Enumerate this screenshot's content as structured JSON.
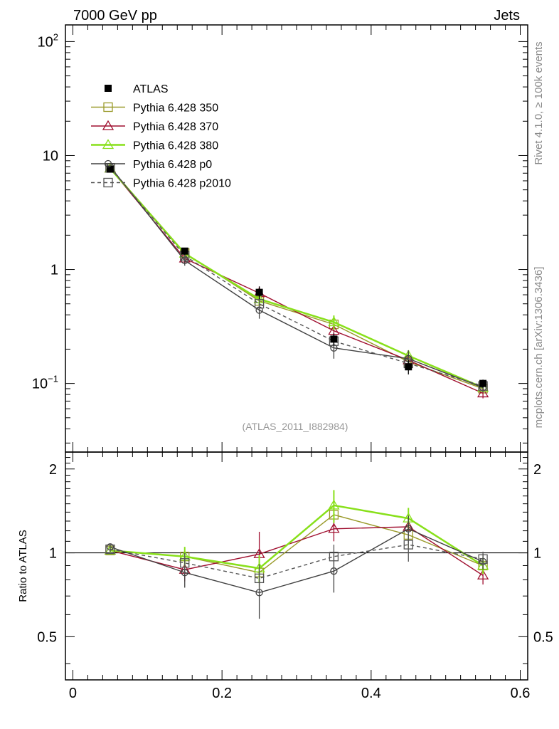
{
  "header": {
    "energy_label": "7000 GeV pp",
    "category_label": "Jets"
  },
  "side_labels": {
    "rivet": "Rivet 4.1.0, ≥ 100k events",
    "mcplots": "mcplots.cern.ch [arXiv:1306.3436]"
  },
  "analysis_id": "(ATLAS_2011_I882984)",
  "chart_data": [
    {
      "type": "line",
      "panel": "main",
      "yscale": "log",
      "ylim": [
        0.025,
        140
      ],
      "xlim": [
        -0.01,
        0.61
      ],
      "ytick_labels": {
        "e2": "10^2",
        "ten": "10",
        "one": "1",
        "tenth": "10^-1"
      },
      "x": [
        0.05,
        0.15,
        0.25,
        0.35,
        0.45,
        0.55
      ],
      "series": [
        {
          "name": "ATLAS",
          "color": "#000000",
          "marker": "filled-square",
          "style": "points",
          "values": [
            7.6,
            1.45,
            0.63,
            0.245,
            0.14,
            0.1
          ],
          "errors": [
            0.3,
            0.1,
            0.08,
            0.03,
            0.02,
            0.008
          ]
        },
        {
          "name": "Pythia 6.428 350",
          "color": "#9a9a2a",
          "marker": "open-square",
          "style": "solid",
          "values": [
            7.8,
            1.4,
            0.53,
            0.33,
            0.155,
            0.09
          ],
          "errors": [
            0.2,
            0.12,
            0.06,
            0.04,
            0.02,
            0.008
          ]
        },
        {
          "name": "Pythia 6.428 370",
          "color": "#a01030",
          "marker": "open-triangle",
          "style": "solid",
          "values": [
            7.7,
            1.25,
            0.62,
            0.29,
            0.16,
            0.082
          ],
          "errors": [
            0.2,
            0.12,
            0.09,
            0.04,
            0.02,
            0.008
          ]
        },
        {
          "name": "Pythia 6.428 380",
          "color": "#88e01a",
          "marker": "open-triangle",
          "style": "solid",
          "values": [
            7.7,
            1.38,
            0.55,
            0.345,
            0.175,
            0.092
          ],
          "errors": [
            0.2,
            0.12,
            0.06,
            0.05,
            0.02,
            0.008
          ]
        },
        {
          "name": "Pythia 6.428 p0",
          "color": "#404040",
          "marker": "open-circle",
          "style": "solid",
          "values": [
            8.0,
            1.2,
            0.44,
            0.205,
            0.165,
            0.092
          ],
          "errors": [
            0.2,
            0.12,
            0.07,
            0.04,
            0.03,
            0.008
          ]
        },
        {
          "name": "Pythia 6.428 p2010",
          "color": "#555555",
          "marker": "open-square",
          "style": "dashed",
          "values": [
            7.8,
            1.32,
            0.5,
            0.235,
            0.15,
            0.095
          ],
          "errors": [
            0.2,
            0.12,
            0.06,
            0.03,
            0.02,
            0.008
          ]
        }
      ]
    },
    {
      "type": "line",
      "panel": "ratio",
      "ylabel": "Ratio to ATLAS",
      "ylim": [
        0.35,
        2.3
      ],
      "yticks": [
        0.5,
        1,
        2
      ],
      "ytick_labels": [
        "0.5",
        "1",
        "2"
      ],
      "xlim": [
        -0.01,
        0.61
      ],
      "xticks": [
        0,
        0.2,
        0.4,
        0.6
      ],
      "xtick_labels": [
        "0",
        "0.2",
        "0.4",
        "0.6"
      ],
      "reference_line": 1,
      "x": [
        0.05,
        0.15,
        0.25,
        0.35,
        0.45,
        0.55
      ],
      "series": [
        {
          "name": "Pythia 6.428 350",
          "values": [
            1.02,
            0.97,
            0.85,
            1.37,
            1.16,
            0.9
          ],
          "errors": [
            0.03,
            0.08,
            0.1,
            0.15,
            0.12,
            0.06
          ]
        },
        {
          "name": "Pythia 6.428 370",
          "values": [
            1.02,
            0.87,
            0.99,
            1.22,
            1.24,
            0.83
          ],
          "errors": [
            0.03,
            0.08,
            0.2,
            0.12,
            0.12,
            0.06
          ]
        },
        {
          "name": "Pythia 6.428 380",
          "values": [
            1.02,
            0.97,
            0.88,
            1.48,
            1.33,
            0.9
          ],
          "errors": [
            0.03,
            0.08,
            0.1,
            0.2,
            0.12,
            0.06
          ]
        },
        {
          "name": "Pythia 6.428 p0",
          "values": [
            1.05,
            0.85,
            0.72,
            0.86,
            1.22,
            0.93
          ],
          "errors": [
            0.03,
            0.1,
            0.14,
            0.14,
            0.14,
            0.06
          ]
        },
        {
          "name": "Pythia 6.428 p2010",
          "values": [
            1.03,
            0.92,
            0.81,
            0.97,
            1.07,
            0.95
          ],
          "errors": [
            0.03,
            0.08,
            0.1,
            0.1,
            0.14,
            0.06
          ]
        }
      ]
    }
  ]
}
